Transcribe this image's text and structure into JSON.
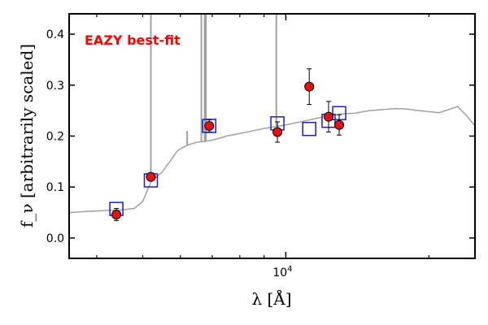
{
  "chart_data": {
    "type": "scatter",
    "title": "",
    "xlabel": "λ [Å]",
    "ylabel": "f_ν [arbitrarily scaled]",
    "x_scale": "log",
    "xlim": [
      3500,
      25000
    ],
    "ylim": [
      -0.04,
      0.44
    ],
    "x_tick_labels": [
      {
        "value": 10000,
        "label": "10^4"
      }
    ],
    "y_ticks": [
      0.0,
      0.1,
      0.2,
      0.3,
      0.4
    ],
    "y_tick_labels": [
      "0.0",
      "0.1",
      "0.2",
      "0.3",
      "0.4"
    ],
    "grid": false,
    "annotation": {
      "text": "EAZY best-fit",
      "color": "#ff0000"
    },
    "colors": {
      "model": "#a0a0a0",
      "model_photometry": "#1a1adc",
      "observed": "#e81010",
      "errorbar": "#000000"
    },
    "series": [
      {
        "kind": "model_spectrum",
        "x": [
          3500,
          3800,
          4200,
          4500,
          4800,
          5000,
          5200,
          5500,
          5700,
          5900,
          6000,
          6200,
          6500,
          6800,
          7000,
          7200,
          7500,
          8000,
          8500,
          9000,
          10000,
          11000,
          12000,
          13000,
          14000,
          15000,
          16000,
          17000,
          18000,
          19000,
          20000,
          21000,
          22000,
          23000,
          24000,
          25000
        ],
        "y": [
          0.05,
          0.052,
          0.054,
          0.055,
          0.058,
          0.072,
          0.11,
          0.13,
          0.15,
          0.17,
          0.175,
          0.182,
          0.188,
          0.19,
          0.192,
          0.195,
          0.2,
          0.205,
          0.21,
          0.215,
          0.222,
          0.23,
          0.238,
          0.243,
          0.245,
          0.25,
          0.252,
          0.254,
          0.253,
          0.25,
          0.248,
          0.246,
          0.252,
          0.258,
          0.24,
          0.22
        ],
        "emission_lines": [
          {
            "x": 5200,
            "peak": 0.44
          },
          {
            "x": 6200,
            "peak": 0.21
          },
          {
            "x": 6640,
            "peak": 0.44
          },
          {
            "x": 6750,
            "peak": 0.44
          },
          {
            "x": 6790,
            "peak": 0.44
          },
          {
            "x": 9550,
            "peak": 0.44
          }
        ]
      },
      {
        "kind": "model_photometry",
        "x": [
          4400,
          5200,
          6900,
          9600,
          11200,
          12300,
          12950
        ],
        "y": [
          0.057,
          0.113,
          0.22,
          0.225,
          0.214,
          0.23,
          0.245
        ]
      },
      {
        "kind": "observed_photometry",
        "x": [
          4400,
          5200,
          6900,
          9600,
          11200,
          12300,
          12950
        ],
        "y": [
          0.046,
          0.12,
          0.22,
          0.208,
          0.297,
          0.238,
          0.222
        ],
        "yerr": [
          0.012,
          0.008,
          0.012,
          0.02,
          0.035,
          0.03,
          0.02
        ]
      }
    ]
  }
}
